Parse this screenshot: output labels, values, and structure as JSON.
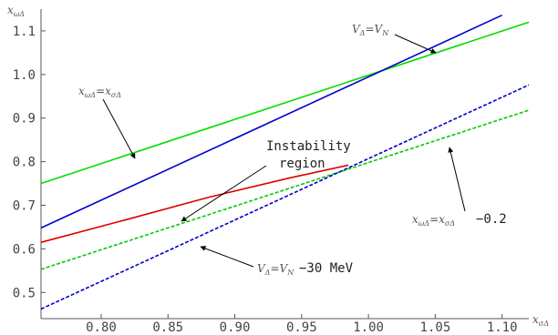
{
  "chart_data": {
    "type": "line",
    "xlabel": "x_{σΔ}",
    "ylabel": "x_{ωΔ}",
    "xlim": [
      0.755,
      1.12
    ],
    "ylim": [
      0.44,
      1.15
    ],
    "x_ticks": [
      "0.80",
      "0.85",
      "0.90",
      "0.95",
      "1.00",
      "1.05",
      "1.10"
    ],
    "y_ticks": [
      "0.5",
      "0.6",
      "0.7",
      "0.8",
      "0.9",
      "1.0",
      "1.1"
    ],
    "x_tick_values": [
      0.8,
      0.85,
      0.9,
      0.95,
      1.0,
      1.05,
      1.1
    ],
    "y_tick_values": [
      0.5,
      0.6,
      0.7,
      0.8,
      0.9,
      1.0,
      1.1
    ],
    "series": [
      {
        "color": "#00dd00",
        "dash": false,
        "x": [
          0.755,
          1.12
        ],
        "y": [
          0.75,
          1.12
        ]
      },
      {
        "color": "#0000cc",
        "dash": false,
        "x": [
          0.755,
          1.1
        ],
        "y": [
          0.648,
          1.136
        ]
      },
      {
        "color": "#00cc00",
        "dash": true,
        "x": [
          0.755,
          1.12
        ],
        "y": [
          0.553,
          0.918
        ]
      },
      {
        "color": "#0000cc",
        "dash": true,
        "x": [
          0.755,
          1.12
        ],
        "y": [
          0.462,
          0.976
        ]
      },
      {
        "color": "#dd0000",
        "dash": false,
        "x": [
          0.755,
          0.82,
          0.88,
          0.94,
          0.985
        ],
        "y": [
          0.615,
          0.668,
          0.718,
          0.762,
          0.792
        ]
      }
    ],
    "annotations": {
      "instability_line1": "Instability",
      "instability_line2": "region",
      "x_equal": "x_{ωΔ}=x_{σΔ}",
      "x_minus": "x_{ωΔ}=x_{σΔ}",
      "x_minus_suffix": "−0.2",
      "v_equal": "V_Δ=V_N",
      "v_minus": "V_Δ=V_N",
      "v_minus_suffix": "−30 MeV"
    }
  }
}
